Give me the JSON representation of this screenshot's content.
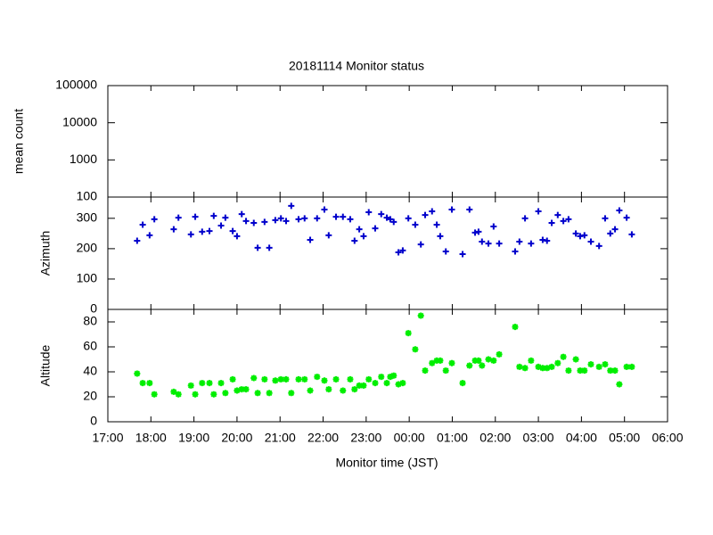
{
  "chart_data": [
    {
      "type": "scatter",
      "title": "20181114 Monitor status",
      "ylabel": "mean count",
      "log_scale": true,
      "xlim": [
        17,
        30
      ],
      "ylim": [
        100,
        100000
      ],
      "yticks": [
        100,
        1000,
        10000,
        100000
      ]
    },
    {
      "type": "scatter",
      "ylabel": "Azimuth",
      "color": "#0000cc",
      "marker": "plus",
      "xlim": [
        17,
        30
      ],
      "ylim": [
        0,
        370
      ],
      "yticks": [
        0,
        100,
        200,
        300
      ],
      "x": [
        17.68,
        17.81,
        17.97,
        18.08,
        18.53,
        18.64,
        18.93,
        19.03,
        19.19,
        19.36,
        19.46,
        19.63,
        19.73,
        19.9,
        20.0,
        20.11,
        20.21,
        20.39,
        20.48,
        20.64,
        20.75,
        20.89,
        21.02,
        21.14,
        21.26,
        21.43,
        21.57,
        21.7,
        21.86,
        22.03,
        22.13,
        22.3,
        22.46,
        22.63,
        22.73,
        22.84,
        22.94,
        23.06,
        23.21,
        23.35,
        23.48,
        23.56,
        23.64,
        23.75,
        23.85,
        23.98,
        24.14,
        24.27,
        24.37,
        24.53,
        24.64,
        24.72,
        24.85,
        24.99,
        25.24,
        25.4,
        25.53,
        25.61,
        25.69,
        25.84,
        25.96,
        26.09,
        26.46,
        26.56,
        26.69,
        26.83,
        27.0,
        27.1,
        27.2,
        27.31,
        27.45,
        27.58,
        27.7,
        27.87,
        27.97,
        28.07,
        28.22,
        28.41,
        28.55,
        28.67,
        28.78,
        28.88,
        29.05,
        29.17
      ],
      "values": [
        226,
        279,
        244,
        297,
        264,
        302,
        247,
        305,
        256,
        258,
        308,
        276,
        302,
        258,
        241,
        314,
        291,
        285,
        203,
        288,
        203,
        294,
        300,
        291,
        341,
        297,
        300,
        229,
        300,
        329,
        244,
        305,
        305,
        297,
        226,
        264,
        241,
        320,
        267,
        314,
        302,
        297,
        288,
        188,
        194,
        300,
        279,
        214,
        311,
        323,
        279,
        241,
        191,
        329,
        182,
        329,
        253,
        256,
        223,
        217,
        273,
        217,
        191,
        223,
        300,
        217,
        323,
        229,
        226,
        285,
        311,
        291,
        297,
        250,
        241,
        244,
        223,
        209,
        300,
        250,
        264,
        326,
        302,
        247
      ]
    },
    {
      "type": "scatter",
      "ylabel": "Altitude",
      "xlabel": "Monitor time (JST)",
      "color": "#00ee00",
      "marker": "star",
      "xlim": [
        17,
        30
      ],
      "ylim": [
        0,
        90
      ],
      "yticks": [
        0,
        20,
        40,
        60,
        80
      ],
      "xticks": [
        {
          "value": 17,
          "label": "17:00"
        },
        {
          "value": 18,
          "label": "18:00"
        },
        {
          "value": 19,
          "label": "19:00"
        },
        {
          "value": 20,
          "label": "20:00"
        },
        {
          "value": 21,
          "label": "21:00"
        },
        {
          "value": 22,
          "label": "22:00"
        },
        {
          "value": 23,
          "label": "23:00"
        },
        {
          "value": 24,
          "label": "00:00"
        },
        {
          "value": 25,
          "label": "01:00"
        },
        {
          "value": 26,
          "label": "02:00"
        },
        {
          "value": 27,
          "label": "03:00"
        },
        {
          "value": 28,
          "label": "04:00"
        },
        {
          "value": 29,
          "label": "05:00"
        },
        {
          "value": 30,
          "label": "06:00"
        }
      ],
      "x": [
        17.68,
        17.81,
        17.97,
        18.08,
        18.53,
        18.64,
        18.93,
        19.03,
        19.19,
        19.36,
        19.46,
        19.63,
        19.73,
        19.9,
        20.0,
        20.11,
        20.21,
        20.39,
        20.48,
        20.64,
        20.75,
        20.89,
        21.02,
        21.14,
        21.26,
        21.43,
        21.57,
        21.7,
        21.86,
        22.03,
        22.13,
        22.3,
        22.46,
        22.63,
        22.73,
        22.84,
        22.94,
        23.06,
        23.21,
        23.35,
        23.48,
        23.56,
        23.64,
        23.75,
        23.85,
        23.98,
        24.14,
        24.27,
        24.37,
        24.53,
        24.64,
        24.72,
        24.85,
        24.99,
        25.24,
        25.4,
        25.53,
        25.61,
        25.69,
        25.84,
        25.96,
        26.09,
        26.46,
        26.56,
        26.69,
        26.83,
        27.0,
        27.1,
        27.2,
        27.31,
        27.45,
        27.58,
        27.7,
        27.87,
        27.97,
        28.07,
        28.22,
        28.41,
        28.55,
        28.67,
        28.78,
        28.88,
        29.05,
        29.17
      ],
      "values": [
        38.6,
        31,
        31,
        22,
        24,
        22,
        29,
        22,
        31,
        31,
        22,
        31,
        23,
        34,
        25,
        26,
        26,
        35,
        23,
        34,
        23,
        33,
        34,
        34,
        23,
        34,
        34,
        25,
        36,
        33,
        26,
        34,
        25,
        34,
        26,
        29,
        29,
        34,
        31,
        36,
        31,
        36,
        37,
        30,
        31,
        71,
        58,
        85,
        41,
        47,
        49,
        49,
        41,
        47,
        31,
        45,
        49,
        49,
        45,
        50,
        49,
        54,
        76,
        44,
        43,
        49,
        44,
        43,
        43,
        44,
        47,
        52,
        41,
        50,
        41,
        41,
        46,
        44,
        46,
        41,
        41,
        30,
        44,
        44
      ]
    }
  ]
}
